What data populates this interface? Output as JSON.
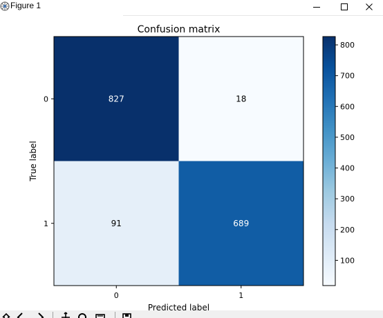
{
  "window": {
    "title": "Figure 1",
    "minimize_icon": "minimize-icon",
    "maximize_icon": "maximize-icon",
    "close_icon": "close-icon"
  },
  "chart_data": {
    "type": "heatmap",
    "title": "Confusion matrix",
    "xlabel": "Predicted label",
    "ylabel": "True label",
    "x_categories": [
      "0",
      "1"
    ],
    "y_categories": [
      "0",
      "1"
    ],
    "values": [
      [
        827,
        18
      ],
      [
        91,
        689
      ]
    ],
    "colormap": "Blues",
    "colorbar": {
      "min": 18,
      "max": 827,
      "ticks": [
        100,
        200,
        300,
        400,
        500,
        600,
        700,
        800
      ]
    },
    "grid": false
  },
  "toolbar": {
    "icons": [
      "home-icon",
      "back-icon",
      "forward-icon",
      "pan-icon",
      "zoom-icon",
      "configure-icon",
      "save-icon"
    ]
  }
}
